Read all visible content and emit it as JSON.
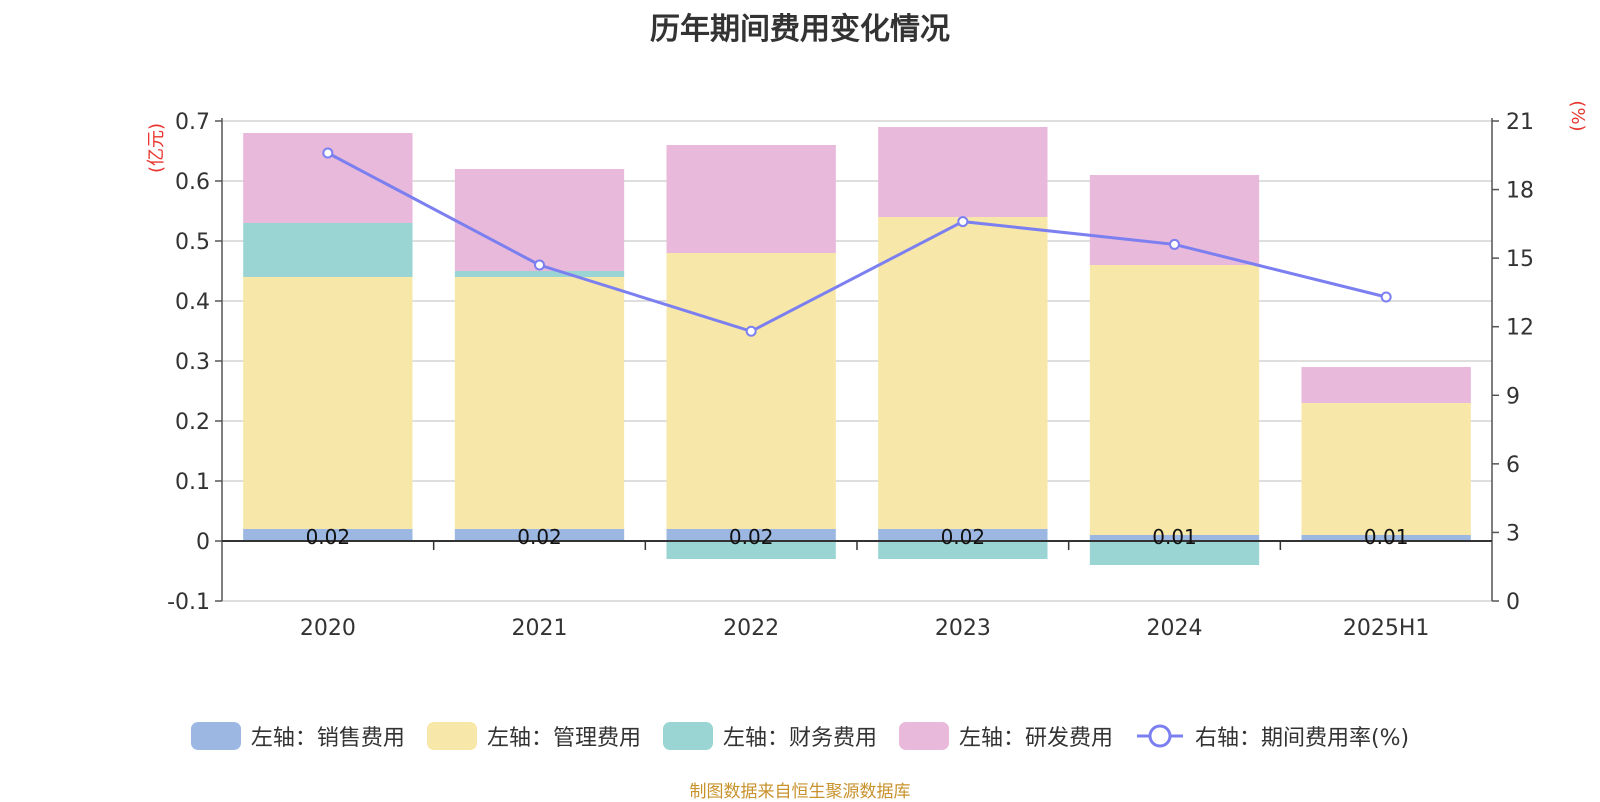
{
  "title": "历年期间费用变化情况",
  "source": "制图数据来自恒生聚源数据库",
  "legend": [
    {
      "label": "左轴：销售费用",
      "color": "#9cb8e2",
      "kind": "bar"
    },
    {
      "label": "左轴：管理费用",
      "color": "#f7e7a8",
      "kind": "bar"
    },
    {
      "label": "左轴：财务费用",
      "color": "#9ad5d4",
      "kind": "bar"
    },
    {
      "label": "左轴：研发费用",
      "color": "#e8b9da",
      "kind": "bar"
    },
    {
      "label": "右轴：期间费用率(%)",
      "color": "#7b7ff0",
      "kind": "line"
    }
  ],
  "chart_data": {
    "type": "bar",
    "title": "历年期间费用变化情况",
    "categories": [
      "2020",
      "2021",
      "2022",
      "2023",
      "2024",
      "2025H1"
    ],
    "left_axis": {
      "unit": "(亿元)",
      "range": [
        -0.1,
        0.7
      ],
      "ticks": [
        "-0.1",
        "0",
        "0.1",
        "0.2",
        "0.3",
        "0.4",
        "0.5",
        "0.6",
        "0.7"
      ]
    },
    "right_axis": {
      "unit": "(%)",
      "range": [
        0,
        21
      ],
      "ticks": [
        "0",
        "3",
        "6",
        "9",
        "12",
        "15",
        "18",
        "21"
      ]
    },
    "series": [
      {
        "name": "左轴：销售费用",
        "axis": "left",
        "color": "#9cb8e2",
        "values": [
          0.02,
          0.02,
          0.02,
          0.02,
          0.01,
          0.01
        ],
        "labels": [
          "0.02",
          "0.02",
          "0.02",
          "0.02",
          "0.01",
          "0.01"
        ]
      },
      {
        "name": "左轴：管理费用",
        "axis": "left",
        "color": "#f7e7a8",
        "values": [
          0.42,
          0.42,
          0.46,
          0.52,
          0.45,
          0.22
        ]
      },
      {
        "name": "左轴：财务费用",
        "axis": "left",
        "color": "#9ad5d4",
        "values": [
          0.09,
          0.01,
          -0.03,
          -0.03,
          -0.04,
          0.0
        ]
      },
      {
        "name": "左轴：研发费用",
        "axis": "left",
        "color": "#e8b9da",
        "values": [
          0.15,
          0.17,
          0.18,
          0.15,
          0.15,
          0.06
        ]
      },
      {
        "name": "右轴：期间费用率(%)",
        "axis": "right",
        "type": "line",
        "color": "#7b7ff0",
        "values": [
          19.6,
          14.7,
          11.8,
          16.6,
          15.6,
          13.3
        ]
      }
    ],
    "grid": true,
    "legend_position": "bottom"
  }
}
